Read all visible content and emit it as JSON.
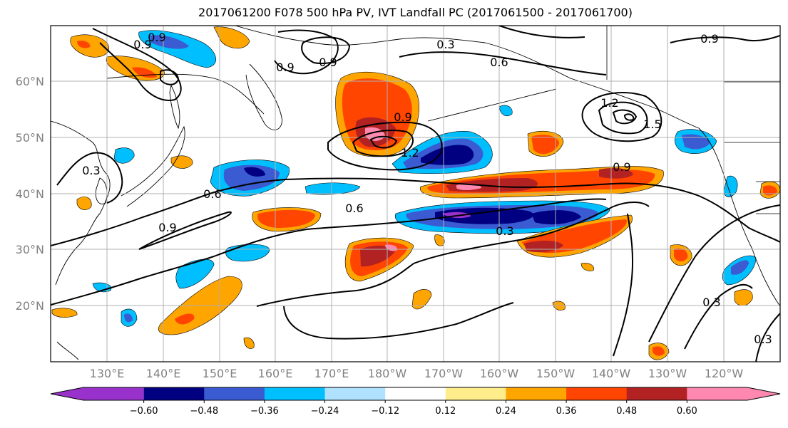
{
  "title": "2017061200 F078 500 hPa PV, IVT Landfall PC (2017061500 - 2017061700)",
  "lat_labels": [
    "60°N",
    "50°N",
    "40°N",
    "30°N",
    "20°N"
  ],
  "lon_labels": [
    "130°E",
    "140°E",
    "150°E",
    "160°E",
    "170°E",
    "180°W",
    "170°W",
    "160°W",
    "150°W",
    "140°W",
    "130°W",
    "120°W"
  ],
  "contour_labels": [
    "0.9",
    "0.9",
    "0.9",
    "0.3",
    "0.6",
    "1.2",
    "1.5",
    "0.9",
    "0.9",
    "1.2",
    "0.3",
    "0.6",
    "0.9",
    "0.6",
    "0.9",
    "0.3",
    "0.3",
    "0.3",
    "0.9"
  ],
  "colorbar": {
    "tick_labels": [
      "−0.60",
      "−0.48",
      "−0.36",
      "−0.24",
      "−0.12",
      "0.12",
      "0.24",
      "0.36",
      "0.48",
      "0.60"
    ],
    "colors": [
      "#9932cc",
      "#000080",
      "#3a5bd1",
      "#00bfff",
      "#b0e2ff",
      "#ffffff",
      "#ffec8b",
      "#ffa500",
      "#ff4500",
      "#b22222",
      "#ff88b0"
    ]
  }
}
